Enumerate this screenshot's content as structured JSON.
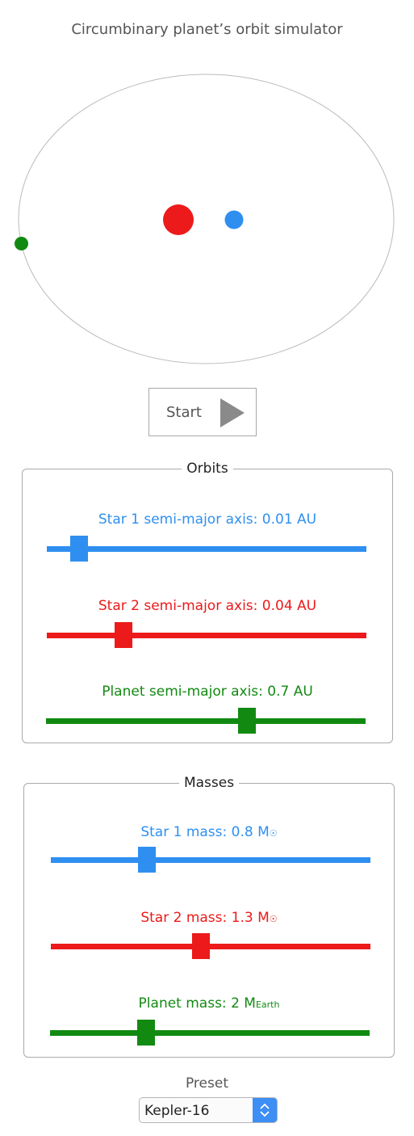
{
  "title": "Circumbinary planet’s orbit simulator",
  "colors": {
    "star1": "#2f8ff0",
    "star2": "#ec1a1a",
    "planet": "#128a12",
    "orbit": "#bbbbbb"
  },
  "controls": {
    "start_label": "Start",
    "start_icon": "play-icon"
  },
  "orbits": {
    "legend": "Orbits",
    "star1": {
      "label": "Star 1 semi-major axis: 0.01 AU",
      "fraction": 0.1
    },
    "star2": {
      "label": "Star 2 semi-major axis: 0.04 AU",
      "fraction": 0.24
    },
    "planet": {
      "label": "Planet semi-major axis: 0.7 AU",
      "fraction": 0.63
    }
  },
  "masses": {
    "legend": "Masses",
    "star1": {
      "text": "Star 1 mass: 0.8 M",
      "unit_sub": "☉",
      "fraction": 0.3
    },
    "star2": {
      "text": "Star 2 mass: 1.3 M",
      "unit_sub": "☉",
      "fraction": 0.47
    },
    "planet": {
      "text": "Planet mass: 2 M",
      "unit_sub": "Earth",
      "fraction": 0.3
    }
  },
  "preset": {
    "label": "Preset",
    "value": "Kepler-16"
  }
}
